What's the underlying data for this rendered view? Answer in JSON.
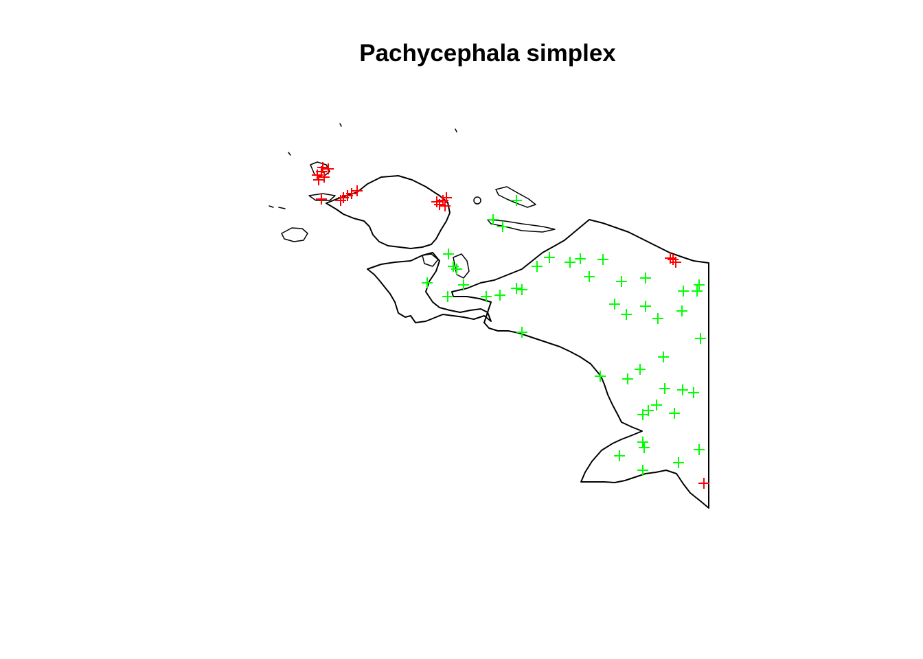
{
  "title": "Pachycephala simplex",
  "colors": {
    "outline": "#000000",
    "record_red": "#ff0000",
    "record_green": "#00ff00",
    "background": "#ffffff"
  },
  "marker": "plus"
}
